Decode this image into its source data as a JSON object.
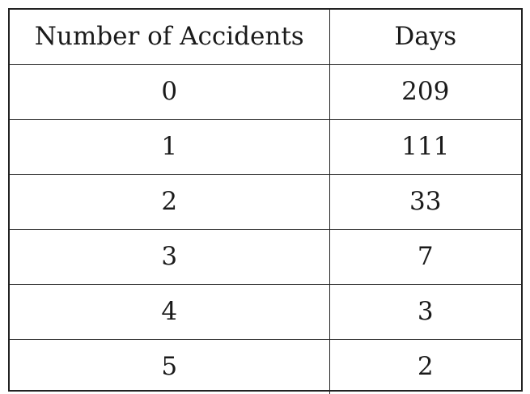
{
  "chart_data": {
    "type": "table",
    "columns": [
      "Number of Accidents",
      "Days"
    ],
    "rows": [
      [
        "0",
        "209"
      ],
      [
        "1",
        "111"
      ],
      [
        "2",
        "33"
      ],
      [
        "3",
        "7"
      ],
      [
        "4",
        "3"
      ],
      [
        "5",
        "2"
      ]
    ]
  }
}
